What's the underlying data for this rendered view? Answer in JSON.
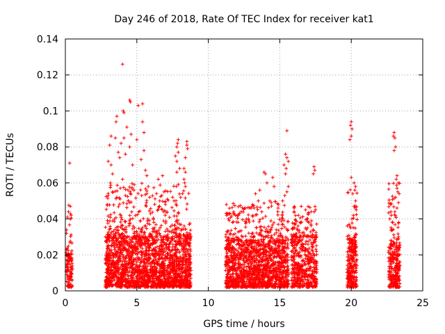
{
  "chart_data": {
    "type": "scatter",
    "title": "Day 246 of 2018, Rate Of TEC Index for receiver kat1",
    "xlabel": "GPS time / hours",
    "ylabel": "ROTI / TECUs",
    "xlim": [
      0,
      25
    ],
    "ylim": [
      0,
      0.14
    ],
    "x_ticks": [
      0,
      5,
      10,
      15,
      20,
      25
    ],
    "x_tick_labels": [
      "0",
      "5",
      "10",
      "15",
      "20",
      "25"
    ],
    "y_ticks": [
      0,
      0.02,
      0.04,
      0.06,
      0.08,
      0.1,
      0.12,
      0.14
    ],
    "y_tick_labels": [
      "0",
      "0.02",
      "0.04",
      "0.06",
      "0.08",
      "0.1",
      "0.12",
      "0.14"
    ],
    "grid": true,
    "marker": "plus",
    "color": "#ff0000",
    "series": [
      {
        "name": "kat1",
        "clusters": [
          {
            "x": [
              0.05,
              0.5
            ],
            "y_base": [
              0.002,
              0.02
            ],
            "y_peak": 0.048,
            "density": 120
          },
          {
            "x": [
              2.8,
              8.8
            ],
            "y_base": [
              0.002,
              0.03
            ],
            "y_peak": 0.06,
            "density": 2200
          },
          {
            "x": [
              11.2,
              15.6
            ],
            "y_base": [
              0.002,
              0.028
            ],
            "y_peak": 0.05,
            "density": 1500
          },
          {
            "x": [
              15.8,
              17.6
            ],
            "y_base": [
              0.002,
              0.03
            ],
            "y_peak": 0.048,
            "density": 500
          },
          {
            "x": [
              19.7,
              20.4
            ],
            "y_base": [
              0.002,
              0.03
            ],
            "y_peak": 0.058,
            "density": 260
          },
          {
            "x": [
              22.6,
              23.4
            ],
            "y_base": [
              0.002,
              0.026
            ],
            "y_peak": 0.06,
            "density": 280
          }
        ],
        "points": [
          [
            0.3,
            0.071
          ],
          [
            0.22,
            0.044
          ],
          [
            0.35,
            0.047
          ],
          [
            0.4,
            0.042
          ],
          [
            0.15,
            0.041
          ],
          [
            4.0,
            0.126
          ],
          [
            4.5,
            0.106
          ],
          [
            4.55,
            0.105
          ],
          [
            5.4,
            0.104
          ],
          [
            5.1,
            0.103
          ],
          [
            4.05,
            0.1
          ],
          [
            4.1,
            0.099
          ],
          [
            3.6,
            0.097
          ],
          [
            3.55,
            0.094
          ],
          [
            5.4,
            0.094
          ],
          [
            4.3,
            0.091
          ],
          [
            5.5,
            0.088
          ],
          [
            3.2,
            0.086
          ],
          [
            3.5,
            0.085
          ],
          [
            4.6,
            0.087
          ],
          [
            4.1,
            0.085
          ],
          [
            5.0,
            0.084
          ],
          [
            3.9,
            0.082
          ],
          [
            3.1,
            0.081
          ],
          [
            4.5,
            0.08
          ],
          [
            5.5,
            0.078
          ],
          [
            3.7,
            0.077
          ],
          [
            4.2,
            0.076
          ],
          [
            3.8,
            0.074
          ],
          [
            5.3,
            0.073
          ],
          [
            3.0,
            0.072
          ],
          [
            3.2,
            0.07
          ],
          [
            4.7,
            0.07
          ],
          [
            5.6,
            0.067
          ],
          [
            3.3,
            0.065
          ],
          [
            5.7,
            0.064
          ],
          [
            4.0,
            0.062
          ],
          [
            3.15,
            0.06
          ],
          [
            5.8,
            0.058
          ],
          [
            4.8,
            0.056
          ],
          [
            3.3,
            0.055
          ],
          [
            4.2,
            0.053
          ],
          [
            5.9,
            0.052
          ],
          [
            3.6,
            0.052
          ],
          [
            4.4,
            0.05
          ],
          [
            7.9,
            0.084
          ],
          [
            7.85,
            0.082
          ],
          [
            7.8,
            0.08
          ],
          [
            7.9,
            0.077
          ],
          [
            7.7,
            0.075
          ],
          [
            7.8,
            0.072
          ],
          [
            8.0,
            0.068
          ],
          [
            7.8,
            0.066
          ],
          [
            8.4,
            0.066
          ],
          [
            8.3,
            0.068
          ],
          [
            8.5,
            0.083
          ],
          [
            8.5,
            0.081
          ],
          [
            8.55,
            0.079
          ],
          [
            8.4,
            0.074
          ],
          [
            8.3,
            0.062
          ],
          [
            8.35,
            0.06
          ],
          [
            8.4,
            0.058
          ],
          [
            8.2,
            0.054
          ],
          [
            7.5,
            0.052
          ],
          [
            7.6,
            0.05
          ],
          [
            6.8,
            0.064
          ],
          [
            6.5,
            0.062
          ],
          [
            6.9,
            0.055
          ],
          [
            6.6,
            0.05
          ],
          [
            7.0,
            0.048
          ],
          [
            13.9,
            0.066
          ],
          [
            14.0,
            0.065
          ],
          [
            14.1,
            0.06
          ],
          [
            14.5,
            0.063
          ],
          [
            14.6,
            0.058
          ],
          [
            13.6,
            0.056
          ],
          [
            13.3,
            0.054
          ],
          [
            13.5,
            0.05
          ],
          [
            14.3,
            0.05
          ],
          [
            13.1,
            0.048
          ],
          [
            12.6,
            0.046
          ],
          [
            12.3,
            0.044
          ],
          [
            11.9,
            0.042
          ],
          [
            11.4,
            0.04
          ],
          [
            12.8,
            0.04
          ],
          [
            15.5,
            0.089
          ],
          [
            15.4,
            0.076
          ],
          [
            15.5,
            0.074
          ],
          [
            15.6,
            0.072
          ],
          [
            15.3,
            0.07
          ],
          [
            15.45,
            0.068
          ],
          [
            15.4,
            0.065
          ],
          [
            15.6,
            0.058
          ],
          [
            15.5,
            0.055
          ],
          [
            15.35,
            0.053
          ],
          [
            15.2,
            0.05
          ],
          [
            14.9,
            0.048
          ],
          [
            16.0,
            0.046
          ],
          [
            16.5,
            0.047
          ],
          [
            16.8,
            0.045
          ],
          [
            17.0,
            0.043
          ],
          [
            16.3,
            0.042
          ],
          [
            16.9,
            0.04
          ],
          [
            17.4,
            0.069
          ],
          [
            17.45,
            0.067
          ],
          [
            17.35,
            0.065
          ],
          [
            17.2,
            0.044
          ],
          [
            17.5,
            0.045
          ],
          [
            20.0,
            0.094
          ],
          [
            19.95,
            0.092
          ],
          [
            20.05,
            0.09
          ],
          [
            20.0,
            0.086
          ],
          [
            19.9,
            0.084
          ],
          [
            20.0,
            0.063
          ],
          [
            20.2,
            0.06
          ],
          [
            20.3,
            0.058
          ],
          [
            20.25,
            0.056
          ],
          [
            20.1,
            0.054
          ],
          [
            20.3,
            0.05
          ],
          [
            20.2,
            0.047
          ],
          [
            20.35,
            0.045
          ],
          [
            20.15,
            0.042
          ],
          [
            20.05,
            0.04
          ],
          [
            23.0,
            0.088
          ],
          [
            22.95,
            0.086
          ],
          [
            23.05,
            0.085
          ],
          [
            23.1,
            0.08
          ],
          [
            23.0,
            0.078
          ],
          [
            23.2,
            0.064
          ],
          [
            23.15,
            0.062
          ],
          [
            23.3,
            0.06
          ],
          [
            23.2,
            0.057
          ],
          [
            23.25,
            0.055
          ],
          [
            23.35,
            0.054
          ],
          [
            23.1,
            0.052
          ],
          [
            23.3,
            0.049
          ],
          [
            23.2,
            0.046
          ],
          [
            23.05,
            0.044
          ],
          [
            22.8,
            0.042
          ],
          [
            22.7,
            0.04
          ],
          [
            22.9,
            0.038
          ]
        ]
      }
    ]
  }
}
